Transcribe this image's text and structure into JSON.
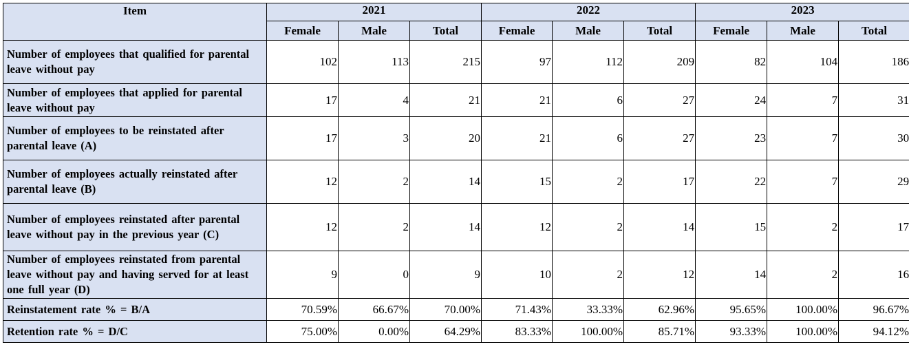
{
  "header": {
    "item": "Item",
    "years": [
      "2021",
      "2022",
      "2023"
    ],
    "sub": [
      "Female",
      "Male",
      "Total"
    ]
  },
  "rows": [
    {
      "label": "Number of employees that qualified for parental leave without pay",
      "values": [
        "102",
        "113",
        "215",
        "97",
        "112",
        "209",
        "82",
        "104",
        "186"
      ]
    },
    {
      "label": "Number of employees that applied for parental leave without pay",
      "values": [
        "17",
        "4",
        "21",
        "21",
        "6",
        "27",
        "24",
        "7",
        "31"
      ]
    },
    {
      "label": "Number of employees to be reinstated after parental leave (A)",
      "values": [
        "17",
        "3",
        "20",
        "21",
        "6",
        "27",
        "23",
        "7",
        "30"
      ]
    },
    {
      "label": "Number of employees actually reinstated after parental leave (B)",
      "values": [
        "12",
        "2",
        "14",
        "15",
        "2",
        "17",
        "22",
        "7",
        "29"
      ]
    },
    {
      "label": "Number of employees reinstated after parental leave without pay in the previous year (C)",
      "values": [
        "12",
        "2",
        "14",
        "12",
        "2",
        "14",
        "15",
        "2",
        "17"
      ]
    },
    {
      "label": "Number of employees reinstated from parental leave without pay and having served for at least one full year (D)",
      "values": [
        "9",
        "0",
        "9",
        "10",
        "2",
        "12",
        "14",
        "2",
        "16"
      ]
    },
    {
      "label": "Reinstatement rate % = B/A",
      "values": [
        "70.59%",
        "66.67%",
        "70.00%",
        "71.43%",
        "33.33%",
        "62.96%",
        "95.65%",
        "100.00%",
        "96.67%"
      ]
    },
    {
      "label": "Retention rate % = D/C",
      "values": [
        "75.00%",
        "0.00%",
        "64.29%",
        "83.33%",
        "100.00%",
        "85.71%",
        "93.33%",
        "100.00%",
        "94.12%"
      ]
    }
  ]
}
